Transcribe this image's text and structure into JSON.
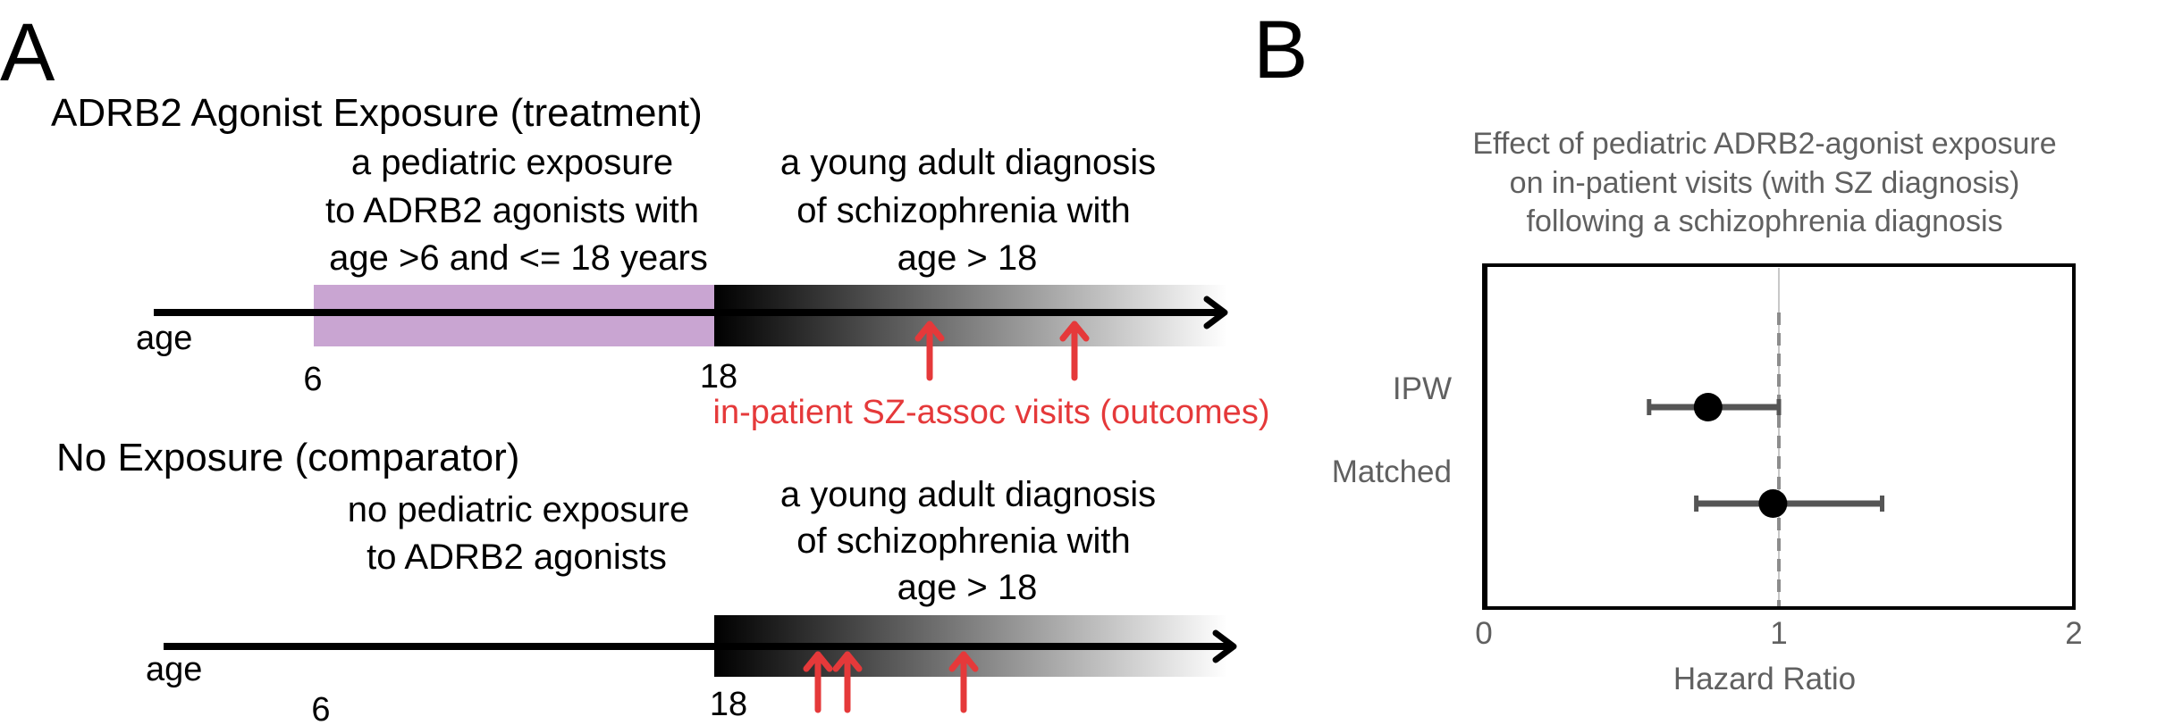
{
  "panel_a": {
    "label": "A",
    "treatment": {
      "title": "ADRB2 Agonist Exposure (treatment)",
      "exposure_desc": [
        "a pediatric exposure",
        "to ADRB2 agonists with",
        "age >6 and <= 18 years"
      ],
      "diagnosis_desc": [
        "a young adult diagnosis",
        "of schizophrenia with",
        "age > 18"
      ],
      "axis_label": "age",
      "tick_6": "6",
      "tick_18": "18",
      "outcome_label": "in-patient SZ-assoc visits (outcomes)",
      "exposure_color": "#c9a5d2",
      "outcome_color": "#e5393a"
    },
    "comparator": {
      "title": "No Exposure (comparator)",
      "exposure_desc": [
        "no pediatric exposure",
        "to ADRB2 agonists"
      ],
      "diagnosis_desc": [
        "a young adult diagnosis",
        "of schizophrenia with",
        "age > 18"
      ],
      "axis_label": "age",
      "tick_6": "6",
      "tick_18": "18"
    }
  },
  "panel_b": {
    "label": "B",
    "chart_data": {
      "type": "forest",
      "title": [
        "Effect of pediatric ADRB2-agonist exposure",
        "on in-patient visits (with SZ diagnosis)",
        "following a schizophrenia diagnosis"
      ],
      "xlabel": "Hazard Ratio",
      "xlim": [
        0,
        2
      ],
      "xticks": [
        "0",
        "1",
        "2"
      ],
      "reference_line": 1,
      "rows": [
        {
          "label": "IPW",
          "estimate": 0.76,
          "ci_low": 0.56,
          "ci_high": 1.0
        },
        {
          "label": "Matched",
          "estimate": 0.98,
          "ci_low": 0.72,
          "ci_high": 1.35
        }
      ]
    }
  }
}
